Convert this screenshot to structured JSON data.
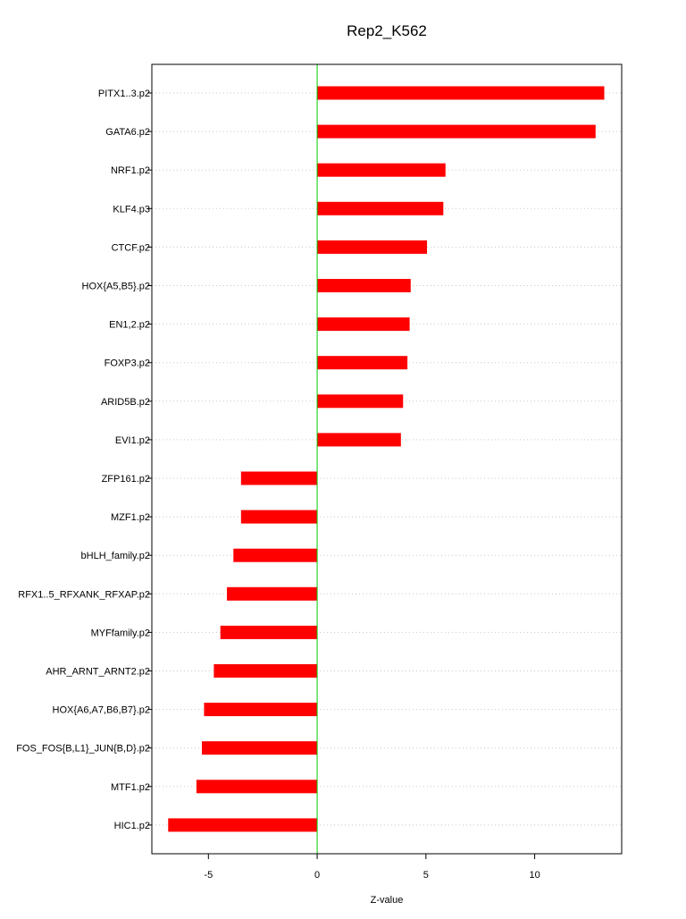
{
  "chart_data": {
    "type": "bar",
    "orientation": "horizontal",
    "title": "Rep2_K562",
    "xlabel": "Z-value",
    "ylabel": "",
    "xlim": [
      -7.6,
      14.0
    ],
    "xticks": [
      -5,
      0,
      5,
      10
    ],
    "bar_color": "#ff0000",
    "zero_line_color": "#00cc00",
    "grid": "horizontal dotted",
    "categories": [
      "PITX1..3.p2",
      "GATA6.p2",
      "NRF1.p2",
      "KLF4.p3",
      "CTCF.p2",
      "HOX{A5,B5}.p2",
      "EN1,2.p2",
      "FOXP3.p2",
      "ARID5B.p2",
      "EVI1.p2",
      "ZFP161.p2",
      "MZF1.p2",
      "bHLH_family.p2",
      "RFX1..5_RFXANK_RFXAP.p2",
      "MYFfamily.p2",
      "AHR_ARNT_ARNT2.p2",
      "HOX{A6,A7,B6,B7}.p2",
      "FOS_FOS{B,L1}_JUN{B,D}.p2",
      "MTF1.p2",
      "HIC1.p2"
    ],
    "values": [
      13.2,
      12.8,
      5.9,
      5.8,
      5.05,
      4.3,
      4.25,
      4.15,
      3.95,
      3.85,
      -3.5,
      -3.5,
      -3.85,
      -4.15,
      -4.45,
      -4.75,
      -5.2,
      -5.3,
      -5.55,
      -6.85
    ]
  }
}
